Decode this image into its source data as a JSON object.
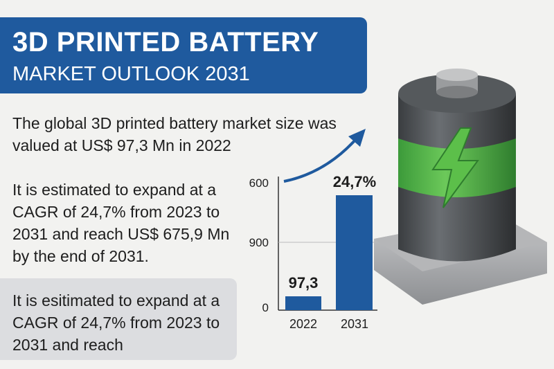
{
  "header": {
    "title": "3D PRINTED BATTERY",
    "subtitle": "MARKET OUTLOOK 2031"
  },
  "paragraphs": [
    "The global 3D printed battery market size was valued at US$ 97,3 Mn in 2022",
    "It is estimated to expand at a CAGR of 24,7% from 2023 to 2031 and reach US$ 675,9 Mn by the end of 2031."
  ],
  "highlight": "It is esitimated to expand at a CAGR of 24,7% from 2023 to 2031 and reach",
  "chart": {
    "axis_labels": [
      "600",
      "900",
      "0"
    ],
    "bars": [
      {
        "category": "2022",
        "label": "97,3"
      },
      {
        "category": "2031",
        "label": "24,7%"
      }
    ]
  }
}
